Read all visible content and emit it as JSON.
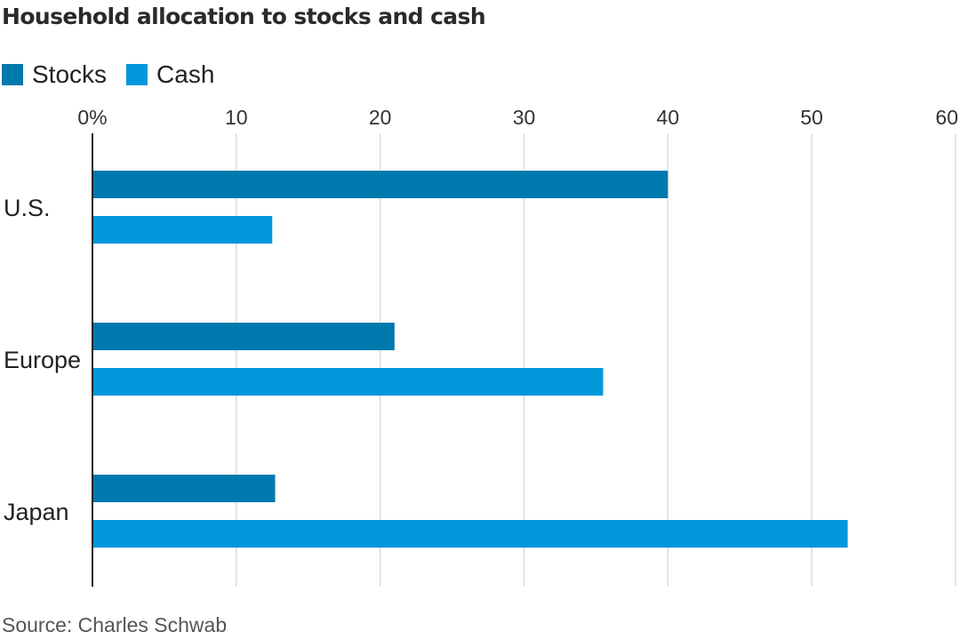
{
  "chart_data": {
    "type": "bar",
    "orientation": "horizontal",
    "title": "Household allocation to stocks and cash",
    "categories": [
      "U.S.",
      "Europe",
      "Japan"
    ],
    "series": [
      {
        "name": "Stocks",
        "values": [
          40,
          21,
          12.7
        ],
        "color": "#0079ae"
      },
      {
        "name": "Cash",
        "values": [
          12.5,
          35.5,
          52.5
        ],
        "color": "#0098db"
      }
    ],
    "xlim": [
      0,
      60
    ],
    "x_ticks": [
      0,
      10,
      20,
      30,
      40,
      50,
      60
    ],
    "x_tick_labels": [
      "0%",
      "10",
      "20",
      "30",
      "40",
      "50",
      "60"
    ],
    "xlabel": "",
    "ylabel": "",
    "grid": "vertical",
    "legend_position": "top-left",
    "source": "Source: Charles Schwab"
  }
}
